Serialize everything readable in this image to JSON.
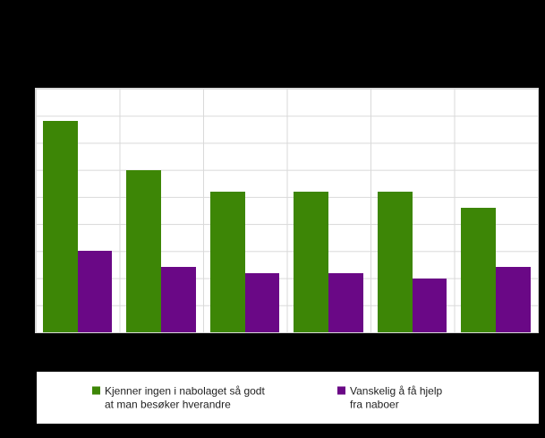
{
  "chart_data": {
    "type": "bar",
    "title": "",
    "xlabel": "",
    "ylabel": "",
    "categories": [
      "",
      "",
      "",
      "",
      "",
      ""
    ],
    "series": [
      {
        "name": "Kjenner ingen i nabolaget så godt at man besøker hverandre",
        "color": "#3D8606",
        "values": [
          39,
          30,
          26,
          26,
          26,
          23
        ]
      },
      {
        "name": "Vanskelig å få hjelp fra naboer",
        "color": "#6A0886",
        "values": [
          15,
          12,
          11,
          11,
          10,
          12
        ]
      }
    ],
    "ylim": [
      0,
      45
    ],
    "gridline_step": 5,
    "grid": true,
    "axis_tick_labels_visible": false,
    "legend_position": "bottom"
  },
  "legend": {
    "items": [
      {
        "swatch_color": "#3D8606",
        "lines": [
          "Kjenner ingen i nabolaget så godt",
          "at man besøker hverandre"
        ]
      },
      {
        "swatch_color": "#6A0886",
        "lines": [
          "Vanskelig å få hjelp",
          "fra naboer"
        ]
      }
    ]
  },
  "colors": {
    "canvas_background": "#000000",
    "plot_background": "#ffffff",
    "gridline": "#d9d9d9",
    "legend_text": "#1f1f1f"
  }
}
